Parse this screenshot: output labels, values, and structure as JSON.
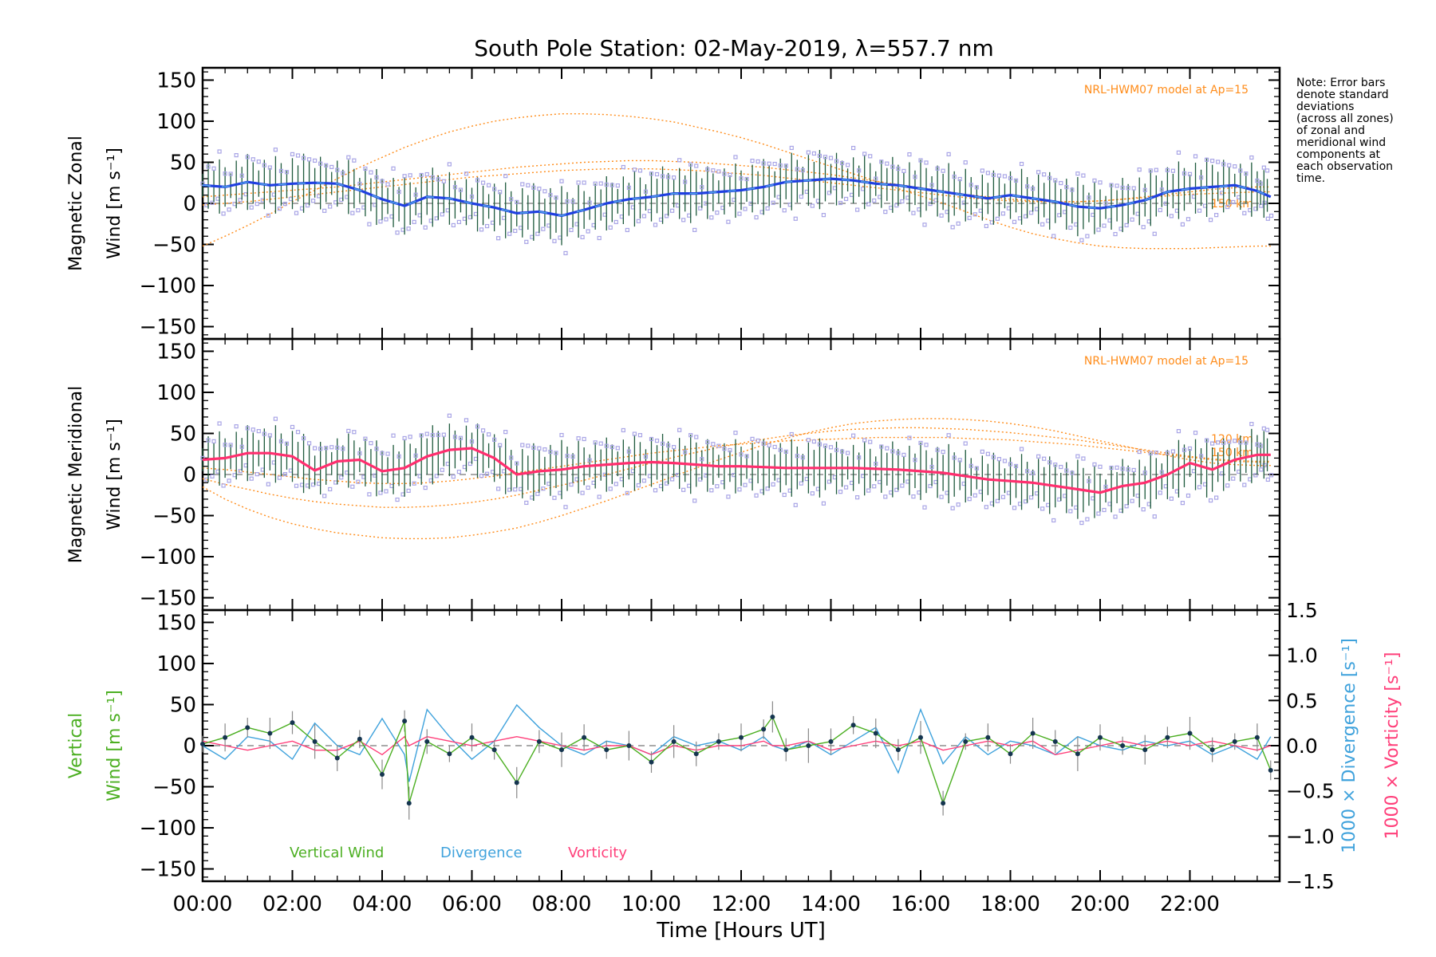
{
  "title": "South Pole Station: 02-May-2019, λ=557.7 nm",
  "note_lines": [
    "Note: Error bars",
    "denote standard",
    "deviations",
    "(across all zones)",
    "of zonal and",
    "meridional wind",
    "components at",
    "each observation",
    "time."
  ],
  "colors": {
    "zonal": "#1f3fe0",
    "zonal_light": "#4fa3e6",
    "meridional": "#ff2e6e",
    "model": "#ff8c1a",
    "scatter": "#a9a5e6",
    "vertical": "#4caf22",
    "divergence": "#3fa2dc",
    "vorticity": "#ff3f7a",
    "errorbar": "#1e5a3c",
    "zeroline": "#777777"
  },
  "chart_data": [
    {
      "type": "line",
      "panel": "zonal",
      "ylabel_lines": [
        "Magnetic Zonal",
        "Wind [m s⁻¹]"
      ],
      "model_label": "NRL-HWM07 model at Ap=15",
      "model_km_labels": [
        "150 km"
      ],
      "ylim": [
        -165,
        165
      ],
      "yticks": [
        "150",
        "100",
        "50",
        "0",
        "−50",
        "−100",
        "−150"
      ],
      "ytick_values": [
        150,
        100,
        50,
        0,
        -50,
        -100,
        -150
      ],
      "x": [
        0,
        0.5,
        1,
        1.5,
        2,
        2.5,
        3,
        3.5,
        4,
        4.5,
        5,
        5.5,
        6,
        6.5,
        7,
        7.5,
        8,
        8.5,
        9,
        9.5,
        10,
        10.5,
        11,
        11.5,
        12,
        12.5,
        13,
        13.5,
        14,
        14.5,
        15,
        15.5,
        16,
        16.5,
        17,
        17.5,
        18,
        18.5,
        19,
        19.5,
        20,
        20.5,
        21,
        21.5,
        22,
        22.5,
        23,
        23.5,
        23.8
      ],
      "values": [
        22,
        20,
        26,
        22,
        24,
        25,
        24,
        16,
        5,
        -3,
        8,
        6,
        0,
        -5,
        -12,
        -10,
        -15,
        -8,
        0,
        5,
        8,
        12,
        12,
        14,
        16,
        20,
        26,
        28,
        30,
        28,
        24,
        22,
        18,
        14,
        10,
        6,
        10,
        6,
        2,
        -4,
        -6,
        -2,
        4,
        14,
        18,
        20,
        22,
        15,
        8
      ],
      "model_curves": [
        {
          "name": "model-a",
          "values": [
            -52,
            -40,
            -27,
            -13,
            2,
            16,
            30,
            44,
            56,
            68,
            78,
            87,
            94,
            100,
            104,
            107,
            109,
            109,
            108,
            106,
            103,
            99,
            93,
            87,
            80,
            72,
            63,
            54,
            45,
            36,
            27,
            18,
            9,
            0,
            -10,
            -20,
            -29,
            -37,
            -43,
            -48,
            -52,
            -54,
            -55,
            -55,
            -55,
            -54,
            -53,
            -52,
            -52
          ]
        },
        {
          "name": "model-b",
          "values": [
            8,
            10,
            12,
            14,
            16,
            18,
            20,
            23,
            26,
            29,
            32,
            35,
            38,
            41,
            44,
            46,
            48,
            50,
            51,
            52,
            52,
            51,
            50,
            48,
            46,
            44,
            41,
            38,
            35,
            31,
            27,
            23,
            19,
            15,
            11,
            8,
            5,
            3,
            2,
            2,
            3,
            5,
            8,
            11,
            14,
            17,
            19,
            20,
            20
          ]
        },
        {
          "name": "model-c",
          "values": [
            -2,
            0,
            2,
            5,
            8,
            11,
            14,
            17,
            20,
            23,
            26,
            29,
            32,
            34,
            36,
            38,
            40,
            41,
            42,
            42,
            42,
            41,
            40,
            38,
            36,
            34,
            31,
            28,
            25,
            22,
            19,
            16,
            13,
            10,
            7,
            5,
            3,
            2,
            2,
            2,
            3,
            5,
            7,
            9,
            11,
            12,
            13,
            14,
            14
          ]
        }
      ]
    },
    {
      "type": "line",
      "panel": "meridional",
      "ylabel_lines": [
        "Magnetic Meridional",
        "Wind [m s⁻¹]"
      ],
      "model_label": "NRL-HWM07 model at Ap=15",
      "model_km_labels": [
        "120 km",
        "150 km"
      ],
      "ylim": [
        -165,
        165
      ],
      "yticks": [
        "150",
        "100",
        "50",
        "0",
        "−50",
        "−100",
        "−150"
      ],
      "ytick_values": [
        150,
        100,
        50,
        0,
        -50,
        -100,
        -150
      ],
      "x": [
        0,
        0.5,
        1,
        1.5,
        2,
        2.5,
        3,
        3.5,
        4,
        4.5,
        5,
        5.5,
        6,
        6.5,
        7,
        7.5,
        8,
        8.5,
        9,
        9.5,
        10,
        10.5,
        11,
        11.5,
        12,
        12.5,
        13,
        13.5,
        14,
        14.5,
        15,
        15.5,
        16,
        16.5,
        17,
        17.5,
        18,
        18.5,
        19,
        19.5,
        20,
        20.5,
        21,
        21.5,
        22,
        22.5,
        23,
        23.5,
        23.8
      ],
      "values": [
        18,
        20,
        26,
        26,
        22,
        5,
        16,
        18,
        4,
        8,
        22,
        30,
        32,
        20,
        0,
        4,
        6,
        10,
        12,
        14,
        15,
        14,
        12,
        10,
        10,
        9,
        8,
        8,
        8,
        8,
        7,
        6,
        4,
        2,
        -2,
        -6,
        -8,
        -10,
        -14,
        -18,
        -22,
        -14,
        -10,
        0,
        14,
        6,
        18,
        24,
        24
      ],
      "model_curves": [
        {
          "name": "model-a",
          "values": [
            -15,
            -30,
            -42,
            -52,
            -60,
            -66,
            -71,
            -74,
            -77,
            -78,
            -78,
            -77,
            -74,
            -70,
            -65,
            -58,
            -50,
            -41,
            -32,
            -22,
            -12,
            -2,
            8,
            18,
            27,
            36,
            44,
            51,
            57,
            62,
            65,
            67,
            68,
            68,
            67,
            65,
            62,
            58,
            53,
            47,
            41,
            35,
            29,
            23,
            18,
            14,
            12,
            11,
            11
          ]
        },
        {
          "name": "model-b",
          "values": [
            -5,
            -12,
            -18,
            -24,
            -29,
            -33,
            -36,
            -38,
            -40,
            -40,
            -39,
            -37,
            -34,
            -30,
            -25,
            -19,
            -13,
            -7,
            0,
            7,
            14,
            21,
            27,
            33,
            38,
            43,
            47,
            50,
            53,
            55,
            56,
            57,
            57,
            56,
            55,
            53,
            51,
            48,
            45,
            42,
            38,
            34,
            30,
            26,
            22,
            19,
            17,
            16,
            16
          ]
        },
        {
          "name": "model-c",
          "values": [
            8,
            6,
            3,
            0,
            -3,
            -6,
            -8,
            -10,
            -11,
            -11,
            -10,
            -8,
            -5,
            -2,
            2,
            6,
            10,
            14,
            18,
            22,
            26,
            29,
            32,
            35,
            37,
            39,
            41,
            42,
            43,
            44,
            45,
            45,
            45,
            45,
            44,
            43,
            42,
            40,
            38,
            36,
            33,
            30,
            27,
            24,
            21,
            18,
            16,
            15,
            15
          ]
        }
      ]
    },
    {
      "type": "line",
      "panel": "vertical",
      "ylabel_lines": [
        "Vertical",
        "Wind [m s⁻¹]"
      ],
      "ylim": [
        -165,
        165
      ],
      "yticks": [
        "150",
        "100",
        "50",
        "0",
        "−50",
        "−100",
        "−150"
      ],
      "ytick_values": [
        150,
        100,
        50,
        0,
        -50,
        -100,
        -150
      ],
      "right_ylabels": [
        "1000 × Divergence [s⁻¹]",
        "1000 × Vorticity [s⁻¹]"
      ],
      "right_ylim": [
        -1.5,
        1.5
      ],
      "right_yticks": [
        "1.5",
        "1.0",
        "0.5",
        "0.0",
        "−0.5",
        "−1.0",
        "−1.5"
      ],
      "right_ytick_values": [
        1.5,
        1.0,
        0.5,
        0.0,
        -0.5,
        -1.0,
        -1.5
      ],
      "legend": [
        "Vertical Wind",
        "Divergence",
        "Vorticity"
      ],
      "xlabel": "Time [Hours UT]",
      "xticks": [
        "00:00",
        "02:00",
        "04:00",
        "06:00",
        "08:00",
        "10:00",
        "12:00",
        "14:00",
        "16:00",
        "18:00",
        "20:00",
        "22:00"
      ],
      "xtick_values": [
        0,
        2,
        4,
        6,
        8,
        10,
        12,
        14,
        16,
        18,
        20,
        22
      ],
      "xlim": [
        0,
        24
      ],
      "x": [
        0,
        0.5,
        1,
        1.5,
        2,
        2.5,
        3,
        3.5,
        4,
        4.5,
        4.6,
        5,
        5.5,
        6,
        6.5,
        7,
        7.5,
        8,
        8.5,
        9,
        9.5,
        10,
        10.5,
        11,
        11.5,
        12,
        12.5,
        12.7,
        13,
        13.5,
        14,
        14.5,
        15,
        15.5,
        16,
        16.5,
        17,
        17.5,
        18,
        18.5,
        19,
        19.5,
        20,
        20.5,
        21,
        21.5,
        22,
        22.5,
        23,
        23.5,
        23.8
      ],
      "vertical_wind": [
        2,
        10,
        22,
        15,
        28,
        5,
        -15,
        8,
        -35,
        30,
        -70,
        5,
        -10,
        10,
        -5,
        -45,
        5,
        -5,
        10,
        -5,
        0,
        -20,
        5,
        -10,
        5,
        10,
        20,
        35,
        -5,
        0,
        5,
        25,
        15,
        -5,
        10,
        -70,
        5,
        10,
        -10,
        15,
        5,
        -10,
        10,
        0,
        -5,
        10,
        15,
        -5,
        5,
        10,
        -30
      ],
      "divergence": [
        0.0,
        -0.15,
        0.1,
        0.05,
        -0.15,
        0.25,
        0.0,
        -0.1,
        0.3,
        -0.1,
        -0.4,
        0.4,
        0.1,
        -0.15,
        0.05,
        0.45,
        0.2,
        0.0,
        -0.1,
        0.05,
        0.0,
        -0.1,
        0.1,
        0.0,
        0.05,
        -0.05,
        0.1,
        0.0,
        -0.05,
        0.05,
        -0.1,
        0.05,
        0.2,
        -0.3,
        0.4,
        -0.2,
        0.1,
        -0.1,
        0.05,
        0.0,
        -0.1,
        0.1,
        0.0,
        -0.05,
        0.05,
        0.0,
        0.05,
        -0.1,
        0.0,
        -0.15,
        0.1
      ],
      "vorticity": [
        0.05,
        0.0,
        -0.05,
        0.0,
        0.05,
        -0.05,
        -0.05,
        0.05,
        -0.1,
        0.1,
        0.0,
        0.1,
        0.05,
        0.0,
        0.05,
        0.1,
        0.05,
        0.0,
        -0.05,
        0.0,
        0.0,
        -0.1,
        0.0,
        -0.05,
        0.0,
        0.0,
        0.05,
        0.0,
        0.0,
        0.05,
        -0.05,
        0.0,
        0.05,
        0.0,
        0.05,
        -0.05,
        0.0,
        0.05,
        0.0,
        0.05,
        -0.1,
        -0.05,
        0.0,
        0.05,
        0.0,
        0.05,
        0.0,
        0.05,
        0.0,
        -0.05,
        0.0
      ]
    }
  ]
}
